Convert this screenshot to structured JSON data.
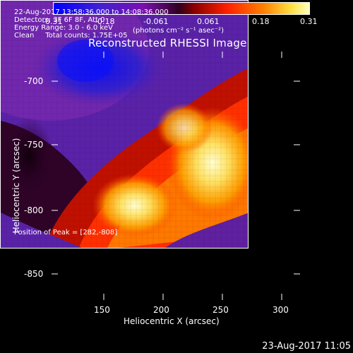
{
  "colorbar": {
    "ticks": [
      "-0.31",
      "-0.18",
      "-0.061",
      "0.061",
      "0.18",
      "0.31"
    ],
    "unit_label": "(photons cm⁻² s⁻¹ asec⁻²)",
    "colors": [
      "#0000ff",
      "#6020c0",
      "#8b00aa",
      "#1a0000",
      "#ff0000",
      "#ffa000",
      "#ffffa0"
    ]
  },
  "title": "Reconstructed RHESSI Image",
  "annotations": {
    "line1": "22-Aug-2017 13:58:36.000 to 14:08:36.000",
    "line2": "Detectors: 3F 6F 8F, Att 0",
    "line3": "Energy Range: 3.0 - 6.0 keV",
    "line4": "Clean     Total counts: 1.75E+05",
    "peak": "Position of Peak = [282,-808]"
  },
  "axes": {
    "xlabel": "Heliocentric X (arcsec)",
    "ylabel": "Heliocentric Y (arcsec)",
    "xticks": [
      "150",
      "200",
      "250",
      "300"
    ],
    "yticks": [
      "-700",
      "-750",
      "-800",
      "-850"
    ]
  },
  "footer_date": "23-Aug-2017 11:05"
}
